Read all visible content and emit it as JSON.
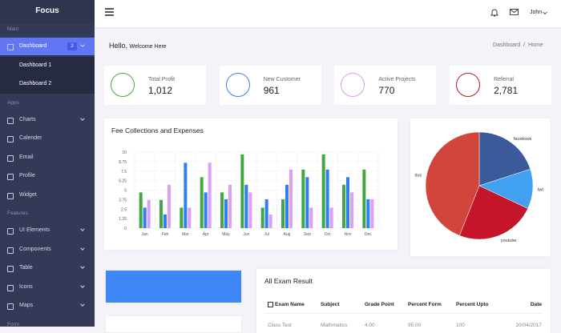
{
  "sidebar": {
    "brand": "Focus",
    "sections": [
      {
        "title": "Main",
        "items": [
          "Dashboard"
        ],
        "badge": "2",
        "subitems": [
          "Dashboard 1",
          "Dashboard 2"
        ]
      },
      {
        "title": "Apps",
        "items": [
          "Charts",
          "Calender",
          "Email",
          "Profile",
          "Widget"
        ]
      },
      {
        "title": "Features",
        "items": [
          "UI Elements",
          "Components",
          "Table",
          "Icons",
          "Maps"
        ]
      },
      {
        "title": "Form",
        "items": []
      }
    ]
  },
  "topbar": {
    "user": "John"
  },
  "header": {
    "greeting": "Hello,",
    "subgreeting": "Welcome Here",
    "breadcrumb": [
      "Dashboard",
      "Home"
    ]
  },
  "stats": [
    {
      "label": "Total Profit",
      "value": "1,012"
    },
    {
      "label": "New Customer",
      "value": "961"
    },
    {
      "label": "Active Projects",
      "value": "770"
    },
    {
      "label": "Referral",
      "value": "2,781"
    }
  ],
  "chart_data": [
    {
      "type": "bar",
      "title": "Fee Collections and Expenses",
      "categories": [
        "Jan",
        "Feb",
        "Mar",
        "Apr",
        "May",
        "Jun",
        "Jul",
        "Aug",
        "Sep",
        "Oct",
        "Nov",
        "Dec"
      ],
      "series": [
        {
          "color": "#43a843",
          "values": [
            4.7,
            3.7,
            2.7,
            6.7,
            4.7,
            9.7,
            2.7,
            3.8,
            7.7,
            9.7,
            5.7,
            7.7
          ]
        },
        {
          "color": "#2f7ef5",
          "values": [
            2.7,
            1.8,
            8.6,
            4.7,
            3.8,
            5.7,
            3.8,
            5.7,
            6.7,
            7.7,
            6.7,
            3.8
          ]
        },
        {
          "color": "#dc9ff5",
          "values": [
            3.7,
            5.7,
            2.7,
            8.6,
            5.7,
            4.7,
            1.8,
            7.7,
            2.7,
            2.7,
            4.7,
            3.8
          ]
        }
      ],
      "ylim": [
        0,
        10
      ],
      "yticks": [
        0,
        1.25,
        2.5,
        3.75,
        5,
        6.25,
        7.5,
        8.75,
        10
      ],
      "grid": true
    },
    {
      "type": "pie",
      "categories": [
        "facebook",
        "twt",
        "youtube",
        "dus"
      ],
      "values": [
        20,
        12,
        24,
        44
      ],
      "colors": [
        "#3b5a9a",
        "#42a0f0",
        "#c4152a",
        "#d2453a"
      ]
    }
  ],
  "table": {
    "title": "All Exam Result",
    "headers": [
      "Exam Name",
      "Subject",
      "Grade Point",
      "Percent Form",
      "Percent Upto",
      "Date"
    ],
    "rows": [
      [
        "Class Test",
        "Mathmatics",
        "4.00",
        "95.00",
        "100",
        "20/04/2017"
      ]
    ]
  }
}
